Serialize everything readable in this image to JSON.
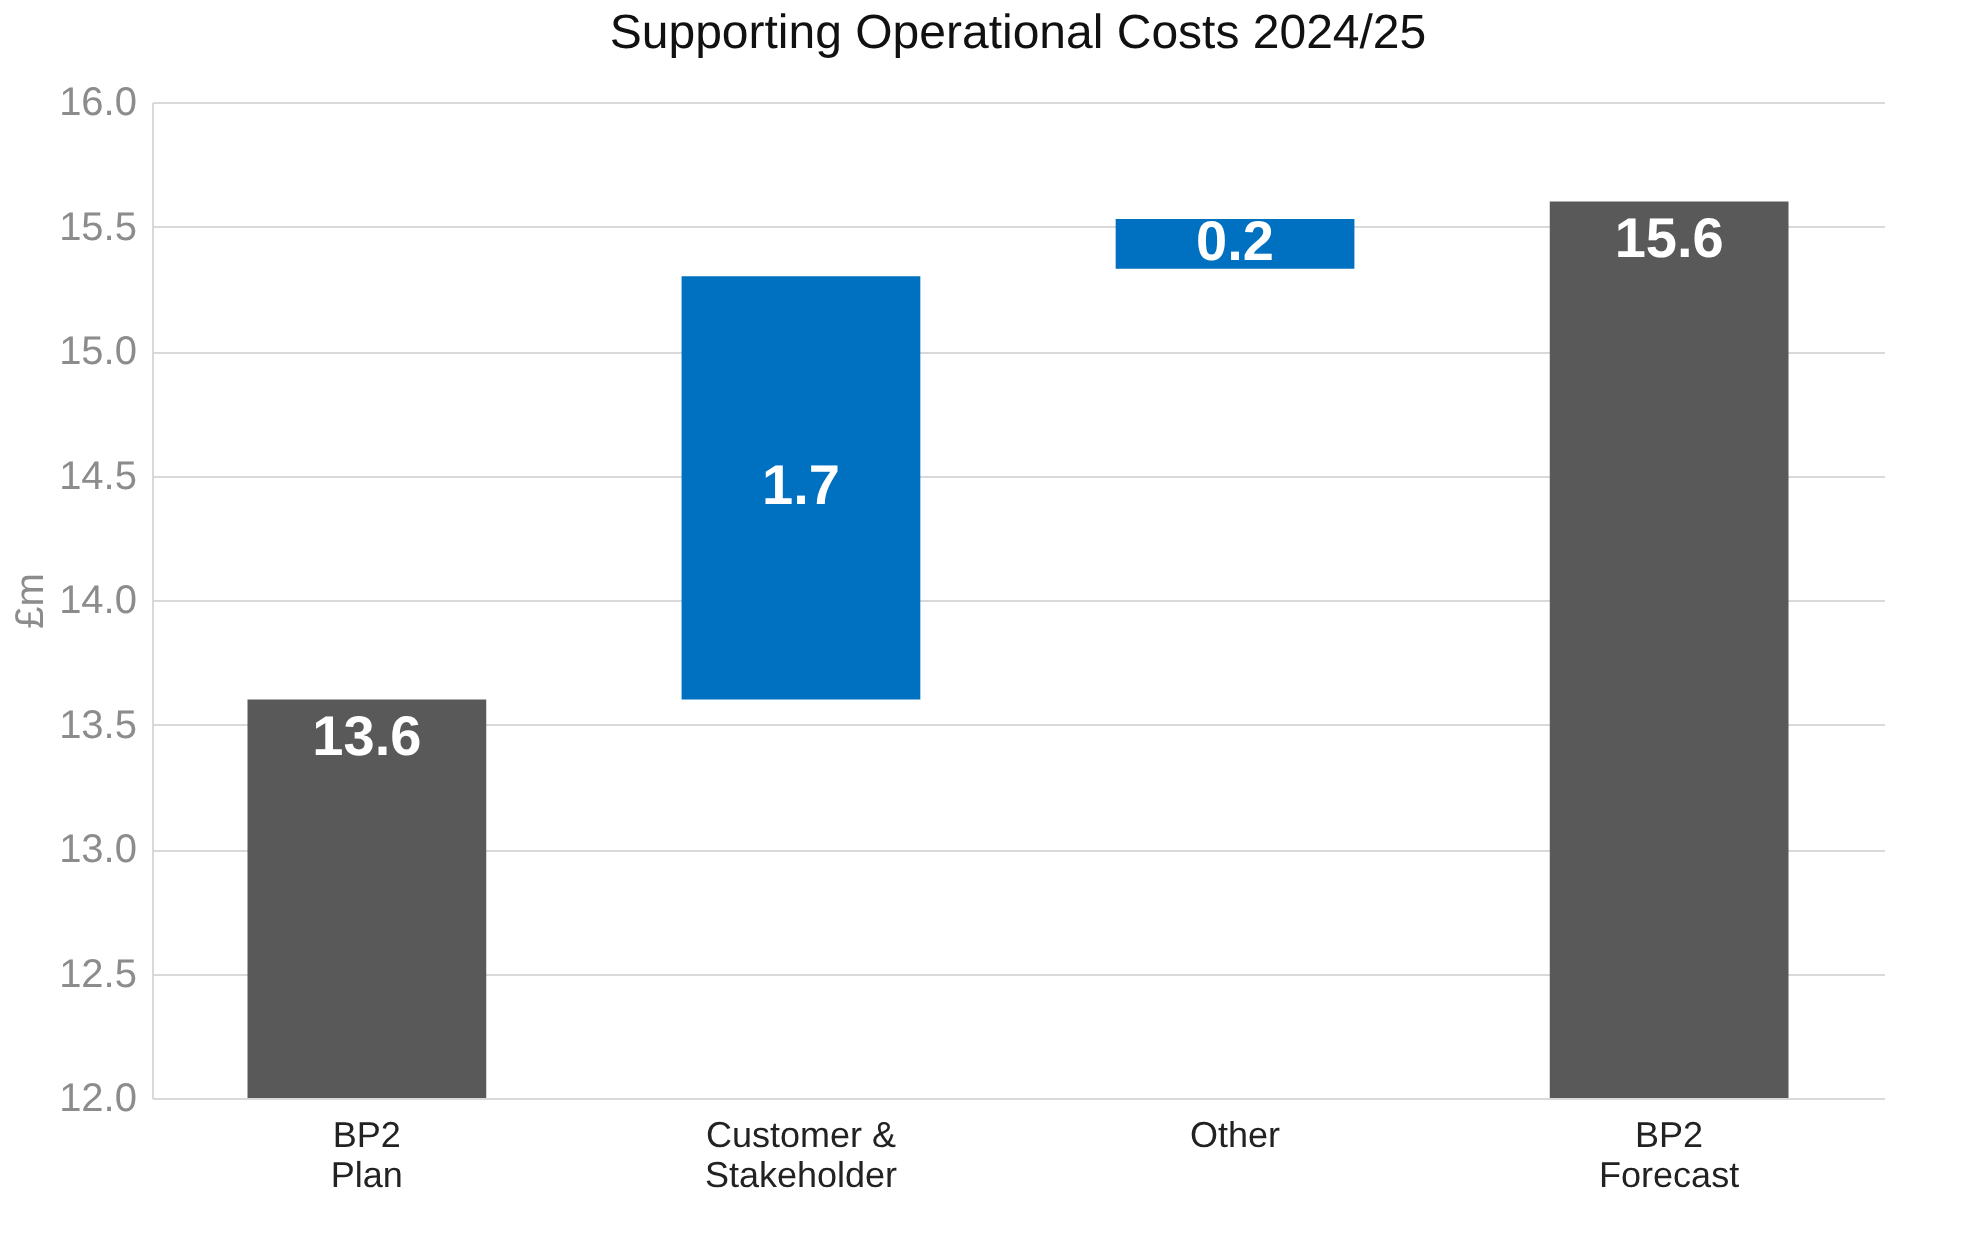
{
  "chart_data": {
    "type": "bar",
    "title": "Supporting Operational Costs 2024/25",
    "ylabel": "£m",
    "categories": [
      "BP2 Plan",
      "Customer & Stakeholder",
      "Other",
      "BP2 Forecast"
    ],
    "values": [
      13.6,
      1.7,
      0.2,
      15.6
    ],
    "base": [
      0,
      13.6,
      15.33,
      0
    ],
    "colors": [
      "#595959",
      "#0070c0",
      "#0070c0",
      "#595959"
    ],
    "ylim": [
      12,
      16
    ],
    "yticks": [
      {
        "value": 12,
        "label": "12.0"
      },
      12.5,
      {
        "value": 13,
        "label": "13.0"
      },
      13.5,
      {
        "value": 14,
        "label": "14.0"
      },
      14.5,
      {
        "value": 15,
        "label": "15.0"
      },
      15.5,
      {
        "value": 16,
        "label": "16.0"
      }
    ],
    "grid": "y",
    "data_labels": true
  }
}
